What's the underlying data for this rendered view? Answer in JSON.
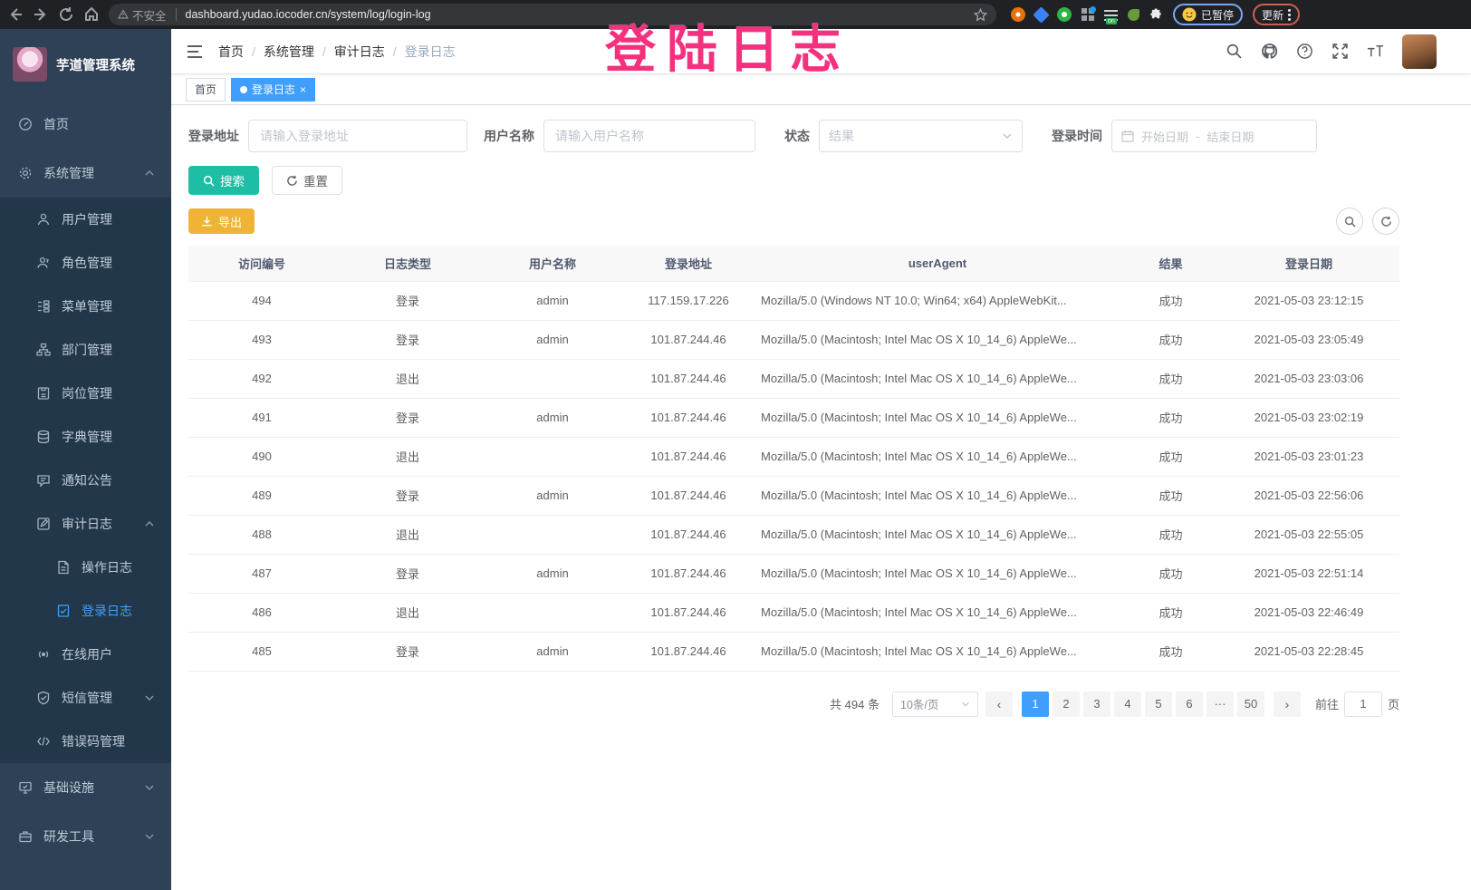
{
  "colors": {
    "accent_blue": "#409eff",
    "search_teal": "#1ebea5",
    "export_amber": "#efb336",
    "annotation_pink": "#f5317f",
    "sidebar_bg": "#2e4156"
  },
  "browser": {
    "security_label": "不安全",
    "url": "dashboard.yudao.iocoder.cn/system/log/login-log",
    "paused_badge": "已暂停",
    "update_button": "更新",
    "on_badge": "on"
  },
  "annotation": {
    "text": "登陆日志"
  },
  "sidebar": {
    "title": "芋道管理系统",
    "items": [
      {
        "label": "首页"
      },
      {
        "label": "系统管理"
      },
      {
        "label": "用户管理"
      },
      {
        "label": "角色管理"
      },
      {
        "label": "菜单管理"
      },
      {
        "label": "部门管理"
      },
      {
        "label": "岗位管理"
      },
      {
        "label": "字典管理"
      },
      {
        "label": "通知公告"
      },
      {
        "label": "审计日志"
      },
      {
        "label": "操作日志"
      },
      {
        "label": "登录日志"
      },
      {
        "label": "在线用户"
      },
      {
        "label": "短信管理"
      },
      {
        "label": "错误码管理"
      },
      {
        "label": "基础设施"
      },
      {
        "label": "研发工具"
      }
    ]
  },
  "breadcrumb": {
    "items": [
      "首页",
      "系统管理",
      "审计日志",
      "登录日志"
    ]
  },
  "tags": {
    "home": "首页",
    "active_tab": "登录日志"
  },
  "filters": {
    "login_address_label": "登录地址",
    "login_address_placeholder": "请输入登录地址",
    "username_label": "用户名称",
    "username_placeholder": "请输入用户名称",
    "status_label": "状态",
    "status_placeholder": "结果",
    "login_time_label": "登录时间",
    "date_start_placeholder": "开始日期",
    "date_separator": "-",
    "date_end_placeholder": "结束日期",
    "search_button": "搜索",
    "reset_button": "重置",
    "export_button": "导出"
  },
  "table": {
    "headers": [
      "访问编号",
      "日志类型",
      "用户名称",
      "登录地址",
      "userAgent",
      "结果",
      "登录日期"
    ],
    "rows": [
      [
        "494",
        "登录",
        "admin",
        "117.159.17.226",
        "Mozilla/5.0 (Windows NT 10.0; Win64; x64) AppleWebKit...",
        "成功",
        "2021-05-03 23:12:15"
      ],
      [
        "493",
        "登录",
        "admin",
        "101.87.244.46",
        "Mozilla/5.0 (Macintosh; Intel Mac OS X 10_14_6) AppleWe...",
        "成功",
        "2021-05-03 23:05:49"
      ],
      [
        "492",
        "退出",
        "",
        "101.87.244.46",
        "Mozilla/5.0 (Macintosh; Intel Mac OS X 10_14_6) AppleWe...",
        "成功",
        "2021-05-03 23:03:06"
      ],
      [
        "491",
        "登录",
        "admin",
        "101.87.244.46",
        "Mozilla/5.0 (Macintosh; Intel Mac OS X 10_14_6) AppleWe...",
        "成功",
        "2021-05-03 23:02:19"
      ],
      [
        "490",
        "退出",
        "",
        "101.87.244.46",
        "Mozilla/5.0 (Macintosh; Intel Mac OS X 10_14_6) AppleWe...",
        "成功",
        "2021-05-03 23:01:23"
      ],
      [
        "489",
        "登录",
        "admin",
        "101.87.244.46",
        "Mozilla/5.0 (Macintosh; Intel Mac OS X 10_14_6) AppleWe...",
        "成功",
        "2021-05-03 22:56:06"
      ],
      [
        "488",
        "退出",
        "",
        "101.87.244.46",
        "Mozilla/5.0 (Macintosh; Intel Mac OS X 10_14_6) AppleWe...",
        "成功",
        "2021-05-03 22:55:05"
      ],
      [
        "487",
        "登录",
        "admin",
        "101.87.244.46",
        "Mozilla/5.0 (Macintosh; Intel Mac OS X 10_14_6) AppleWe...",
        "成功",
        "2021-05-03 22:51:14"
      ],
      [
        "486",
        "退出",
        "",
        "101.87.244.46",
        "Mozilla/5.0 (Macintosh; Intel Mac OS X 10_14_6) AppleWe...",
        "成功",
        "2021-05-03 22:46:49"
      ],
      [
        "485",
        "登录",
        "admin",
        "101.87.244.46",
        "Mozilla/5.0 (Macintosh; Intel Mac OS X 10_14_6) AppleWe...",
        "成功",
        "2021-05-03 22:28:45"
      ]
    ]
  },
  "pagination": {
    "total_text": "共 494 条",
    "page_size": "10条/页",
    "pages": [
      "1",
      "2",
      "3",
      "4",
      "5",
      "6",
      "···",
      "50"
    ],
    "active_page": "1",
    "prev": "‹",
    "next": "›",
    "goto_label": "前往",
    "goto_value": "1",
    "goto_suffix": "页"
  }
}
